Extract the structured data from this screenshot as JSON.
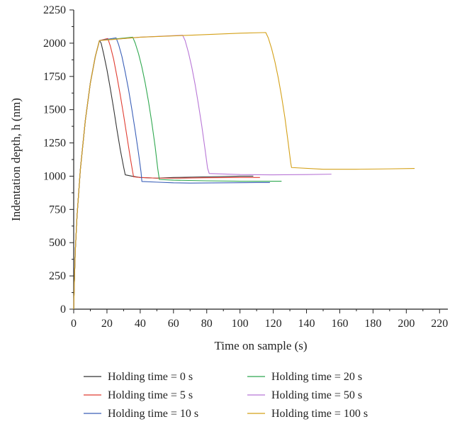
{
  "chart_data": {
    "type": "line",
    "xlabel": "Time on sample (s)",
    "ylabel": "Indentation depth, h (nm)",
    "xlim": [
      0,
      225
    ],
    "ylim": [
      0,
      2250
    ],
    "xticks": [
      0,
      20,
      40,
      60,
      80,
      100,
      120,
      140,
      160,
      180,
      200,
      220
    ],
    "yticks": [
      0,
      250,
      500,
      750,
      1000,
      1250,
      1500,
      1750,
      2000,
      2250
    ],
    "legend_position": "bottom",
    "grid": false,
    "series": [
      {
        "name": "Holding time = 0 s",
        "color": "#333333",
        "points": [
          [
            0,
            0
          ],
          [
            0.5,
            250
          ],
          [
            1,
            450
          ],
          [
            2,
            700
          ],
          [
            4,
            1050
          ],
          [
            7,
            1420
          ],
          [
            10,
            1700
          ],
          [
            13,
            1900
          ],
          [
            15.5,
            2020
          ],
          [
            16.5,
            2000
          ],
          [
            18,
            1920
          ],
          [
            20,
            1800
          ],
          [
            22,
            1660
          ],
          [
            24,
            1510
          ],
          [
            26,
            1350
          ],
          [
            28,
            1200
          ],
          [
            30,
            1070
          ],
          [
            31,
            1010
          ],
          [
            35,
            1000
          ],
          [
            40,
            990
          ],
          [
            50,
            985
          ],
          [
            60,
            990
          ],
          [
            80,
            995
          ],
          [
            100,
            1000
          ],
          [
            108,
            1000
          ]
        ]
      },
      {
        "name": "Holding time = 5 s",
        "color": "#e03c31",
        "points": [
          [
            0,
            0
          ],
          [
            0.5,
            250
          ],
          [
            1,
            450
          ],
          [
            2,
            700
          ],
          [
            4,
            1050
          ],
          [
            7,
            1420
          ],
          [
            10,
            1700
          ],
          [
            13,
            1900
          ],
          [
            15.5,
            2020
          ],
          [
            20.5,
            2035
          ],
          [
            22,
            1980
          ],
          [
            24,
            1880
          ],
          [
            26,
            1750
          ],
          [
            28,
            1610
          ],
          [
            30,
            1460
          ],
          [
            32,
            1300
          ],
          [
            34,
            1140
          ],
          [
            35.5,
            1030
          ],
          [
            36,
            995
          ],
          [
            40,
            990
          ],
          [
            50,
            985
          ],
          [
            60,
            985
          ],
          [
            80,
            988
          ],
          [
            100,
            990
          ],
          [
            112,
            990
          ]
        ]
      },
      {
        "name": "Holding time = 10 s",
        "color": "#3a5fb8",
        "points": [
          [
            0,
            0
          ],
          [
            0.5,
            250
          ],
          [
            1,
            450
          ],
          [
            2,
            700
          ],
          [
            4,
            1050
          ],
          [
            7,
            1420
          ],
          [
            10,
            1700
          ],
          [
            13,
            1900
          ],
          [
            15.5,
            2020
          ],
          [
            25.5,
            2040
          ],
          [
            27,
            1990
          ],
          [
            29,
            1900
          ],
          [
            31,
            1780
          ],
          [
            33,
            1650
          ],
          [
            35,
            1500
          ],
          [
            37,
            1340
          ],
          [
            39,
            1170
          ],
          [
            40.5,
            1030
          ],
          [
            41,
            960
          ],
          [
            50,
            955
          ],
          [
            60,
            950
          ],
          [
            70,
            948
          ],
          [
            90,
            950
          ],
          [
            110,
            952
          ],
          [
            118,
            952
          ]
        ]
      },
      {
        "name": "Holding time = 20 s",
        "color": "#2fa84f",
        "points": [
          [
            0,
            0
          ],
          [
            0.5,
            250
          ],
          [
            1,
            450
          ],
          [
            2,
            700
          ],
          [
            4,
            1050
          ],
          [
            7,
            1420
          ],
          [
            10,
            1700
          ],
          [
            13,
            1900
          ],
          [
            15.5,
            2020
          ],
          [
            35.5,
            2045
          ],
          [
            37,
            2000
          ],
          [
            39,
            1920
          ],
          [
            41,
            1820
          ],
          [
            43,
            1700
          ],
          [
            45,
            1560
          ],
          [
            47,
            1400
          ],
          [
            49,
            1220
          ],
          [
            50.5,
            1060
          ],
          [
            51.5,
            975
          ],
          [
            60,
            970
          ],
          [
            80,
            965
          ],
          [
            100,
            962
          ],
          [
            125,
            962
          ]
        ]
      },
      {
        "name": "Holding time = 50 s",
        "color": "#b876d6",
        "points": [
          [
            0,
            0
          ],
          [
            0.5,
            250
          ],
          [
            1,
            450
          ],
          [
            2,
            700
          ],
          [
            4,
            1050
          ],
          [
            7,
            1420
          ],
          [
            10,
            1700
          ],
          [
            13,
            1900
          ],
          [
            15.5,
            2020
          ],
          [
            40,
            2045
          ],
          [
            65.5,
            2060
          ],
          [
            67,
            2020
          ],
          [
            69,
            1930
          ],
          [
            71,
            1820
          ],
          [
            73,
            1690
          ],
          [
            75,
            1540
          ],
          [
            77,
            1380
          ],
          [
            79,
            1200
          ],
          [
            80.5,
            1060
          ],
          [
            81.5,
            1020
          ],
          [
            100,
            1012
          ],
          [
            120,
            1010
          ],
          [
            140,
            1012
          ],
          [
            155,
            1015
          ]
        ]
      },
      {
        "name": "Holding time = 100 s",
        "color": "#d4a017",
        "points": [
          [
            0,
            0
          ],
          [
            0.5,
            250
          ],
          [
            1,
            450
          ],
          [
            2,
            700
          ],
          [
            4,
            1050
          ],
          [
            7,
            1420
          ],
          [
            10,
            1700
          ],
          [
            13,
            1900
          ],
          [
            15.5,
            2020
          ],
          [
            40,
            2045
          ],
          [
            70,
            2060
          ],
          [
            100,
            2075
          ],
          [
            115.5,
            2080
          ],
          [
            117,
            2040
          ],
          [
            119,
            1960
          ],
          [
            121,
            1860
          ],
          [
            123,
            1740
          ],
          [
            125,
            1600
          ],
          [
            127,
            1440
          ],
          [
            129,
            1250
          ],
          [
            130.5,
            1100
          ],
          [
            131,
            1065
          ],
          [
            150,
            1052
          ],
          [
            170,
            1052
          ],
          [
            190,
            1055
          ],
          [
            205,
            1058
          ]
        ]
      }
    ]
  }
}
